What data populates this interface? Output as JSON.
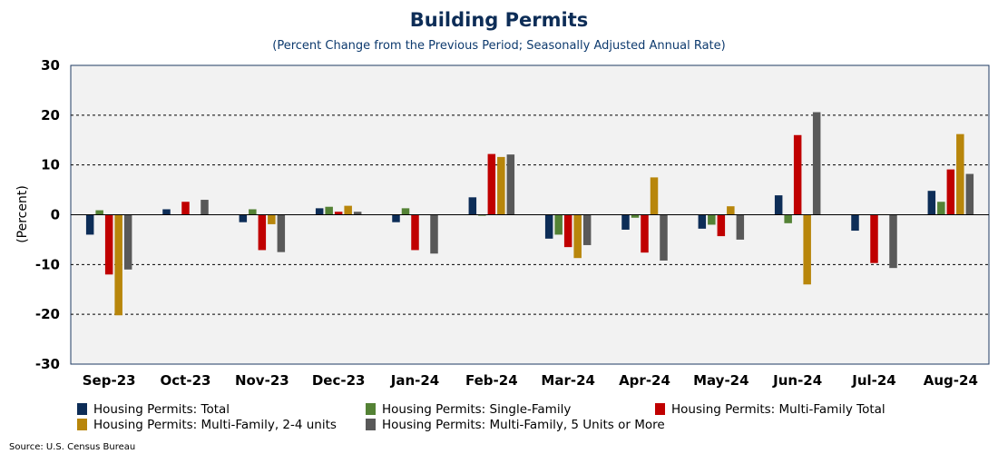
{
  "chart_data": {
    "type": "bar",
    "title": "Building Permits",
    "subtitle": "(Percent Change from the Previous Period; Seasonally Adjusted Annual Rate)",
    "ylabel": "(Percent)",
    "xlabel": "",
    "ylim": [
      -30,
      30
    ],
    "yticks": [
      30,
      20,
      10,
      0,
      -10,
      -20,
      -30
    ],
    "grid": true,
    "legend_position": "bottom",
    "categories": [
      "Sep-23",
      "Oct-23",
      "Nov-23",
      "Dec-23",
      "Jan-24",
      "Feb-24",
      "Mar-24",
      "Apr-24",
      "May-24",
      "Jun-24",
      "Jul-24",
      "Aug-24"
    ],
    "series": [
      {
        "name": "Housing Permits: Total",
        "color": "#0d2d57",
        "values": [
          -4.0,
          1.1,
          -1.5,
          1.3,
          -1.5,
          3.5,
          -4.8,
          -3.0,
          -2.8,
          3.9,
          -3.2,
          4.8
        ]
      },
      {
        "name": "Housing Permits: Single-Family",
        "color": "#548235",
        "values": [
          0.9,
          0.0,
          1.1,
          1.6,
          1.3,
          -0.2,
          -4.0,
          -0.6,
          -2.0,
          -1.7,
          0.0,
          2.6
        ]
      },
      {
        "name": "Housing Permits: Multi-Family Total",
        "color": "#c00000",
        "values": [
          -12.0,
          2.6,
          -7.1,
          0.6,
          -7.1,
          12.2,
          -6.5,
          -7.6,
          -4.3,
          16.0,
          -9.7,
          9.1
        ]
      },
      {
        "name": "Housing Permits: Multi-Family, 2-4 units",
        "color": "#b8860b",
        "values": [
          -20.2,
          0.0,
          -1.9,
          1.8,
          0.0,
          11.6,
          -8.7,
          7.5,
          1.7,
          -14.0,
          0.1,
          16.2
        ]
      },
      {
        "name": "Housing Permits: Multi-Family, 5 Units or More",
        "color": "#595959",
        "values": [
          -11.0,
          3.0,
          -7.5,
          0.6,
          -7.8,
          12.1,
          -6.1,
          -9.2,
          -5.0,
          20.6,
          -10.7,
          8.2
        ]
      }
    ]
  },
  "source": "Source: U.S. Census Bureau"
}
